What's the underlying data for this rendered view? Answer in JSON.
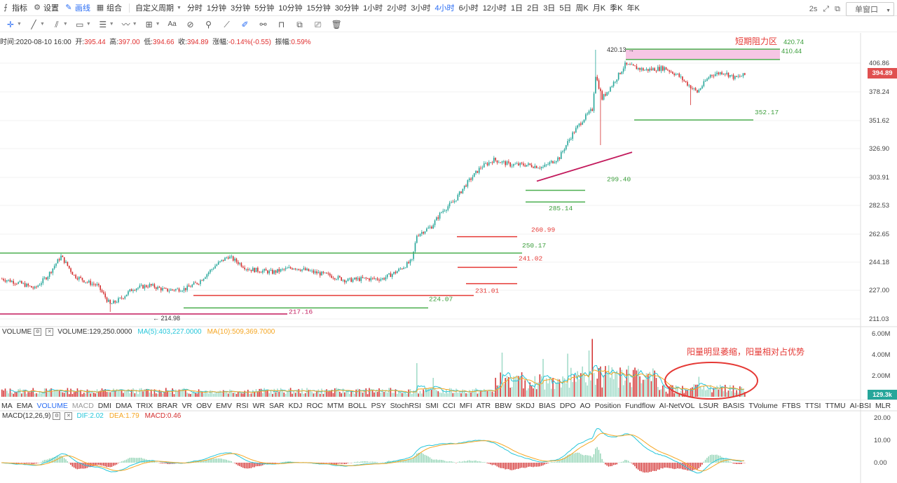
{
  "toolbar": {
    "items": [
      {
        "icon": "indicator-icon",
        "label": "指标"
      },
      {
        "icon": "gear-icon",
        "label": "设置"
      },
      {
        "icon": "pencil-icon",
        "label": "画线"
      },
      {
        "icon": "layout-icon",
        "label": "组合"
      }
    ],
    "custom_period": "自定义周期",
    "periods": [
      "分时",
      "1分钟",
      "3分钟",
      "5分钟",
      "10分钟",
      "15分钟",
      "30分钟",
      "1小时",
      "2小时",
      "3小时",
      "4小时",
      "6小时",
      "12小时",
      "1日",
      "2日",
      "3日",
      "5日",
      "周K",
      "月K",
      "季K",
      "年K"
    ],
    "active_period": "4小时",
    "refresh": "2s",
    "window_button": "单窗口"
  },
  "info": {
    "time_label": "时间:",
    "time": "2020-08-10 16:00",
    "open_label": "开:",
    "open": "395.44",
    "high_label": "高:",
    "high": "397.00",
    "low_label": "低:",
    "low": "394.66",
    "close_label": "收:",
    "close": "394.89",
    "change_label": "涨幅:",
    "change": "-0.14%(-0.55)",
    "amplitude_label": "振幅:",
    "amplitude": "0.59%"
  },
  "price_axis": {
    "min": 205,
    "max": 430,
    "ticks": [
      "406.86",
      "378.24",
      "351.62",
      "326.90",
      "303.91",
      "282.53",
      "262.65",
      "244.18",
      "227.00",
      "211.03"
    ],
    "last_price": "394.89"
  },
  "annotations": {
    "resistance_zone": "短期阻力区",
    "resistance_top": "420.74",
    "resistance_bottom": "410.44",
    "high_marker": "420.13",
    "low_marker": "214.98",
    "levels": [
      "352.17",
      "299.40",
      "285.14",
      "260.99",
      "250.17",
      "241.02",
      "231.01",
      "224.07",
      "217.16"
    ],
    "volume_note": "阳量明显萎缩，阳量相对占优势"
  },
  "volume": {
    "name": "VOLUME",
    "value_label": "VOLUME:129,250.0000",
    "ma5": "MA(5):403,227.0000",
    "ma10": "MA(10):509,369.7000",
    "ticks": [
      "6.00M",
      "4.00M",
      "2.00M"
    ],
    "last": "129.3k"
  },
  "macd": {
    "name": "MACD(12,26,9)",
    "dif": "DIF:2.02",
    "dea": "DEA:1.79",
    "macd": "MACD:0.46",
    "ticks": [
      "20.00",
      "10.00",
      "0.00"
    ]
  },
  "indicator_tabs": [
    "MA",
    "EMA",
    "VOLUME",
    "MACD",
    "DMI",
    "DMA",
    "TRIX",
    "BRAR",
    "VR",
    "OBV",
    "EMV",
    "RSI",
    "WR",
    "SAR",
    "KDJ",
    "ROC",
    "MTM",
    "BOLL",
    "PSY",
    "StochRSI",
    "SMI",
    "CCI",
    "MFI",
    "ATR",
    "BBW",
    "SKDJ",
    "BIAS",
    "DPO",
    "AO",
    "Position",
    "Fundflow",
    "AI-NetVOL",
    "LSUR",
    "BASIS",
    "TVolume",
    "FTBS",
    "TTSI",
    "TTMU",
    "AI-BSI",
    "MLR"
  ],
  "active_indicators": [
    "VOLUME"
  ],
  "muted_indicators": [
    "MACD"
  ],
  "colors": {
    "up": "#26a69a",
    "down": "#d32f2f",
    "support_line": "#4caf50",
    "resist_line": "#e53935",
    "trend_line": "#c2185b",
    "zone_fill": "#f6c6e4",
    "ma5": "#26c6da",
    "ma10": "#f5a623",
    "accent": "#2a6df4"
  }
}
